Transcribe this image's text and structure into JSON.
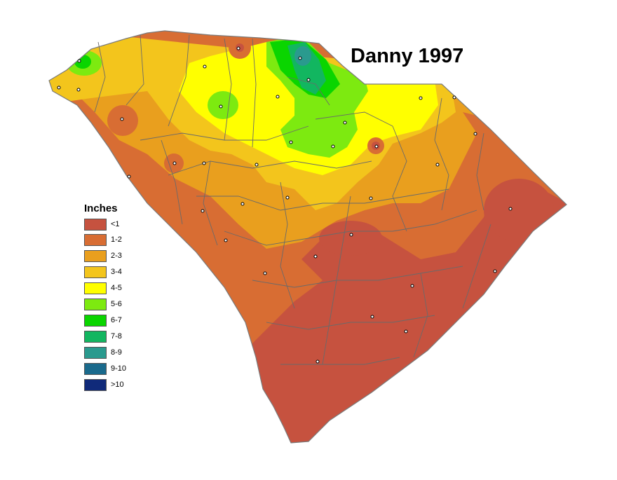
{
  "title": "Danny 1997",
  "legend": {
    "title": "Inches",
    "items": [
      {
        "label": "<1",
        "color": "#c6523f"
      },
      {
        "label": "1-2",
        "color": "#d86d33"
      },
      {
        "label": "2-3",
        "color": "#e99f1e"
      },
      {
        "label": "3-4",
        "color": "#f3c51c"
      },
      {
        "label": "4-5",
        "color": "#ffff00"
      },
      {
        "label": "5-6",
        "color": "#7dea10"
      },
      {
        "label": "6-7",
        "color": "#0ad500"
      },
      {
        "label": "7-8",
        "color": "#12b660"
      },
      {
        "label": "8-9",
        "color": "#2a9a8e"
      },
      {
        "label": "9-10",
        "color": "#1a6a8c"
      },
      {
        "label": ">10",
        "color": "#102a7a"
      }
    ]
  },
  "colors": {
    "county_lines": "#6a6a6a",
    "state_outline": "#7a7a7a",
    "station_marker": "#000000"
  }
}
